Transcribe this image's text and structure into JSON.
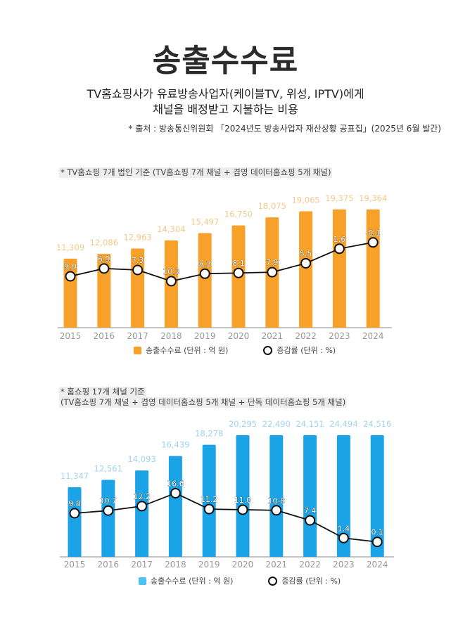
{
  "header": {
    "title": "송출수수료",
    "subtitle_line1": "TV홈쇼핑사가 유료방송사업자(케이블TV, 위성, IPTV)에게",
    "subtitle_line2": "채널을 배정받고 지불하는 비용",
    "source": "* 출처 : 방송통신위원회 「2024년도 방송사업자 재산상황 공표집」(2025년 6월 발간)"
  },
  "chart_data": [
    {
      "type": "bar",
      "note": "* TV홈쇼핑 7개 법인 기준 (TV홈쇼핑 7개 채널 + 겸영 데이터홈쇼핑 5개 채널)",
      "categories": [
        "2015",
        "2016",
        "2017",
        "2018",
        "2019",
        "2020",
        "2021",
        "2022",
        "2023",
        "2024"
      ],
      "series": [
        {
          "name": "송출수수료 (단위 : 억 원)",
          "type": "bar",
          "color": "#f7a12a",
          "label_color": "#f5c98a",
          "values": [
            11309,
            12086,
            12963,
            14304,
            15497,
            16750,
            18075,
            19065,
            19375,
            19364
          ],
          "labels": [
            "11,309",
            "12,086",
            "12,963",
            "14,304",
            "15,497",
            "16,750",
            "18,075",
            "19,065",
            "19,375",
            "19,364"
          ]
        },
        {
          "name": "증감률 (단위 : %)",
          "type": "line",
          "values": [
            9.0,
            6.9,
            7.3,
            10.3,
            8.3,
            8.1,
            7.9,
            5.5,
            1.6,
            -0.1
          ],
          "labels": [
            "9.0",
            "6.9",
            "7.3",
            "10.3",
            "8.3",
            "8.1",
            "7.9",
            "5.5",
            "1.6",
            "-0.1"
          ]
        }
      ]
    },
    {
      "type": "bar",
      "note": "* 홈쇼핑 17개 채널 기준",
      "note2": "(TV홈쇼핑 7개 채널 + 겸영 데이터홈쇼핑 5개 채널 + 단독 데이터홈쇼핑 5개 채널)",
      "categories": [
        "2015",
        "2016",
        "2017",
        "2018",
        "2019",
        "2020",
        "2021",
        "2022",
        "2023",
        "2024"
      ],
      "series": [
        {
          "name": "송출수수료 (단위 : 억 원)",
          "type": "bar",
          "color": "#1ba3e8",
          "label_color": "#9fd4f2",
          "values": [
            11347,
            12561,
            14093,
            16439,
            18278,
            20295,
            22490,
            24151,
            24494,
            24516
          ],
          "labels": [
            "11,347",
            "12,561",
            "14,093",
            "16,439",
            "18,278",
            "20,295",
            "22,490",
            "24,151",
            "24,494",
            "24,516"
          ]
        },
        {
          "name": "증감률 (단위 : %)",
          "type": "line",
          "values": [
            9.8,
            10.7,
            12.2,
            16.6,
            11.2,
            11.0,
            10.8,
            7.4,
            1.4,
            0.1
          ],
          "labels": [
            "9.8",
            "10.7",
            "12.2",
            "16.6",
            "11.2",
            "11.0",
            "10.8",
            "7.4",
            "1.4",
            "0.1"
          ]
        }
      ]
    }
  ]
}
